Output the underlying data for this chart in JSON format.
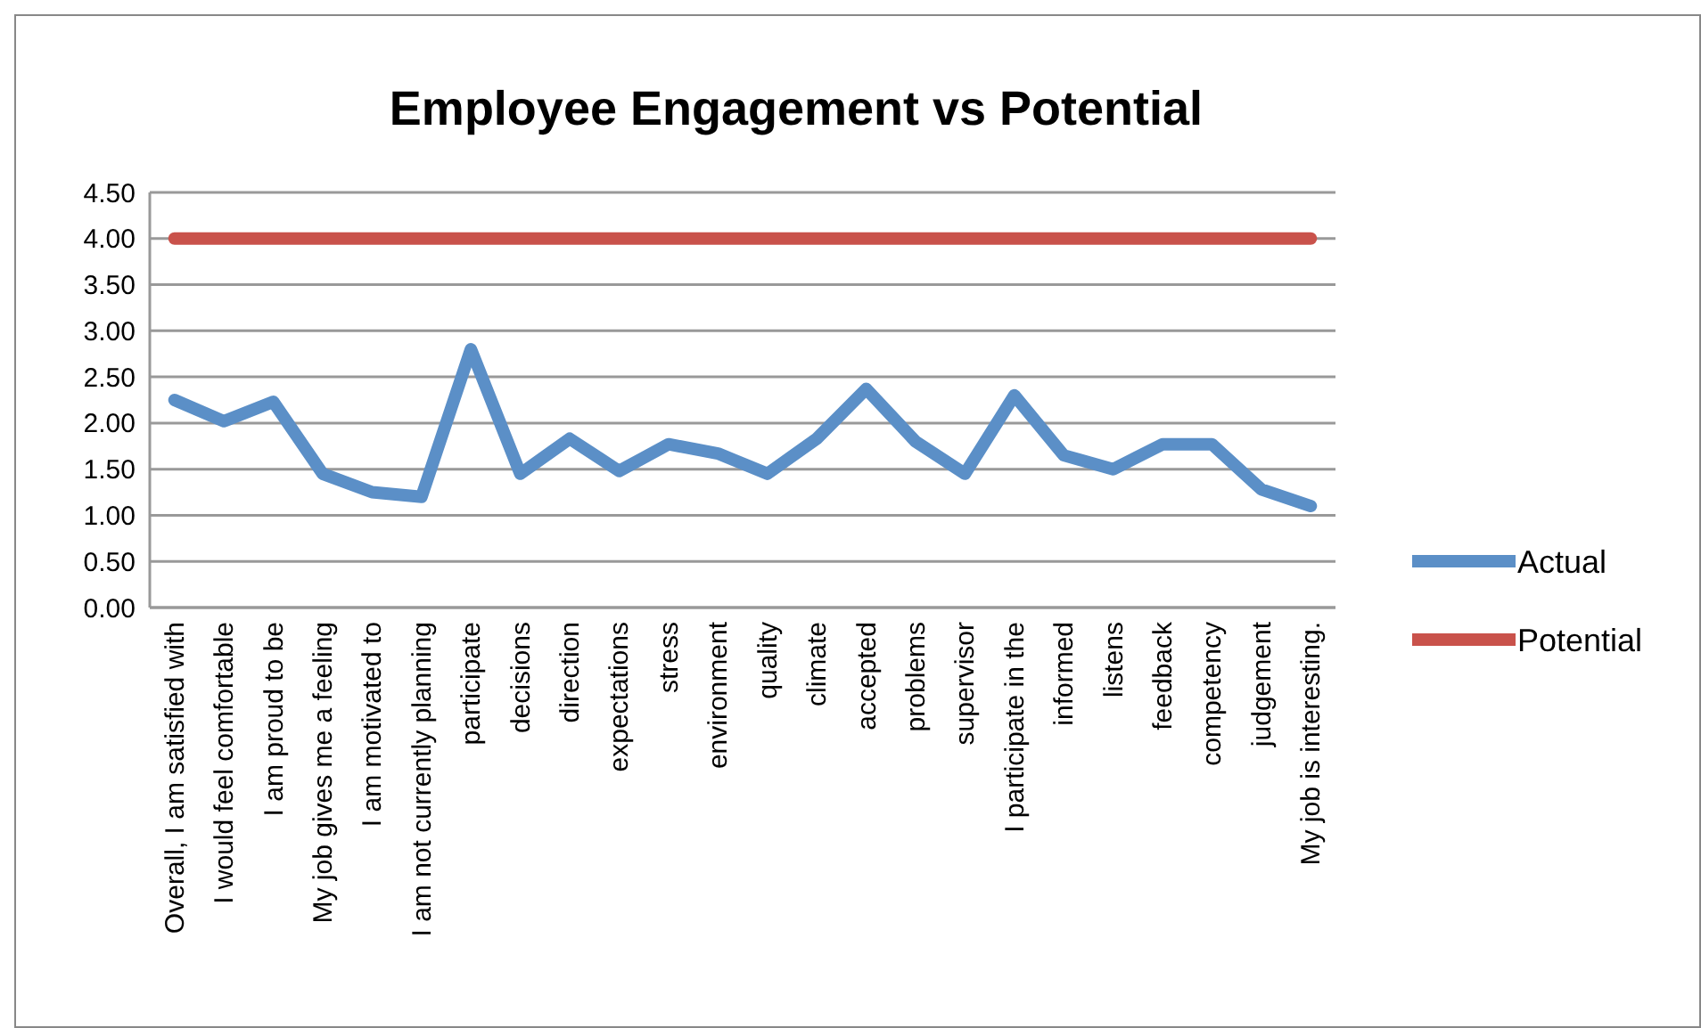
{
  "chart_data": {
    "type": "line",
    "title": "Employee Engagement vs Potential",
    "categories": [
      "Overall, I am satisfied with",
      "I would feel comfortable",
      "I am proud to be",
      "My job gives me a feeling",
      "I am motivated to",
      "I am not currently planning",
      "participate",
      "decisions",
      "direction",
      "expectations",
      "stress",
      "environment",
      "quality",
      "climate",
      "accepted",
      "problems",
      "supervisor",
      "I participate in the",
      "informed",
      "listens",
      "feedback",
      "competency",
      "judgement",
      "My job is interesting."
    ],
    "series": [
      {
        "name": "Actual",
        "color": "#5b8fc7",
        "values": [
          2.25,
          2.02,
          2.23,
          1.45,
          1.25,
          1.2,
          2.8,
          1.45,
          1.83,
          1.48,
          1.77,
          1.67,
          1.45,
          1.83,
          2.37,
          1.8,
          1.45,
          2.3,
          1.65,
          1.5,
          1.77,
          1.77,
          1.28,
          1.1
        ]
      },
      {
        "name": "Potential",
        "color": "#c9524b",
        "values": [
          4,
          4,
          4,
          4,
          4,
          4,
          4,
          4,
          4,
          4,
          4,
          4,
          4,
          4,
          4,
          4,
          4,
          4,
          4,
          4,
          4,
          4,
          4,
          4
        ]
      }
    ],
    "ylim": [
      0,
      4.5
    ],
    "yticks": [
      {
        "value": 0,
        "label": "0.00"
      },
      {
        "value": 0.5,
        "label": "0.50"
      },
      {
        "value": 1,
        "label": "1.00"
      },
      {
        "value": 1.5,
        "label": "1.50"
      },
      {
        "value": 2,
        "label": "2.00"
      },
      {
        "value": 2.5,
        "label": "2.50"
      },
      {
        "value": 3,
        "label": "3.00"
      },
      {
        "value": 3.5,
        "label": "3.50"
      },
      {
        "value": 4,
        "label": "4.00"
      },
      {
        "value": 4.5,
        "label": "4.50"
      }
    ],
    "grid": "y",
    "legend": "right",
    "marker": "none",
    "line_style": "solid"
  }
}
